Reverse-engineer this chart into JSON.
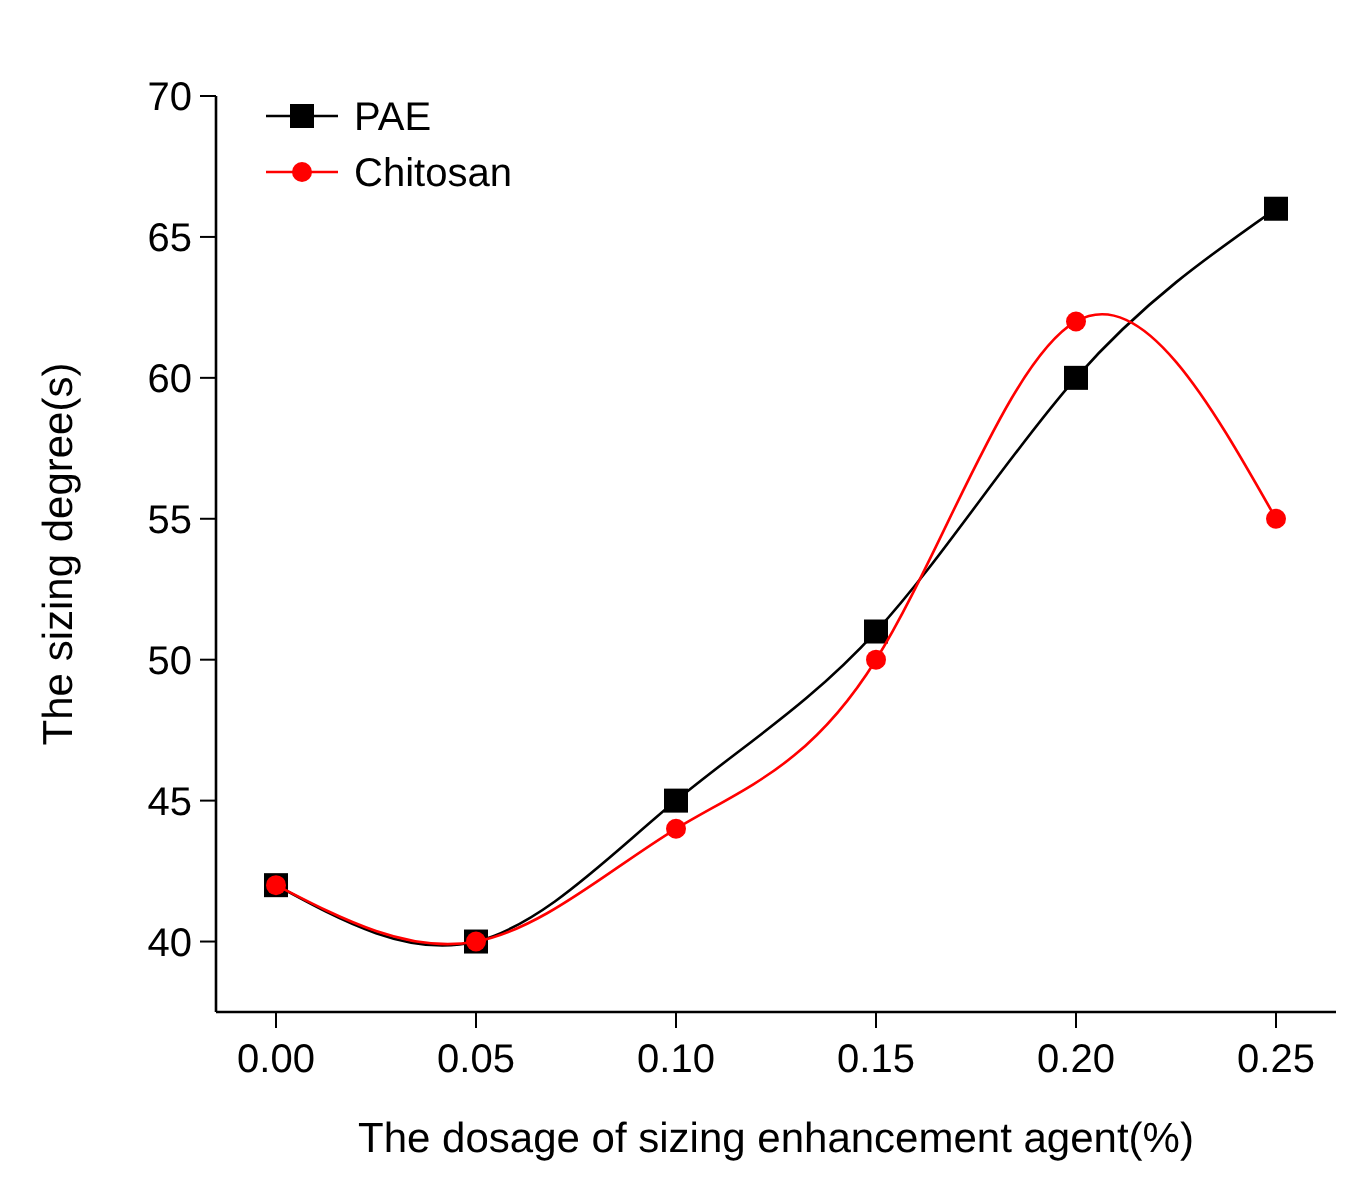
{
  "chart_data": {
    "type": "line",
    "xlabel": "The dosage of sizing enhancement agent(%)",
    "ylabel": "The sizing degree(s)",
    "xlim": [
      -0.015,
      0.265
    ],
    "xticks": [
      {
        "value": 0,
        "label": "0.00"
      },
      {
        "value": 0.05,
        "label": "0.05"
      },
      {
        "value": 0.1,
        "label": "0.10"
      },
      {
        "value": 0.15,
        "label": "0.15"
      },
      {
        "value": 0.2,
        "label": "0.20"
      },
      {
        "value": 0.25,
        "label": "0.25"
      }
    ],
    "ylim": [
      37.5,
      70
    ],
    "yticks": [
      40,
      45,
      50,
      55,
      60,
      65,
      70
    ],
    "x": [
      0,
      0.05,
      0.1,
      0.15,
      0.2,
      0.25
    ],
    "series": [
      {
        "name": "PAE",
        "color": "#000000",
        "marker": "square",
        "values": [
          42,
          40,
          45,
          51,
          60,
          66
        ]
      },
      {
        "name": "Chitosan",
        "color": "#ff0000",
        "marker": "circle",
        "values": [
          42,
          40,
          44,
          50,
          62,
          55
        ]
      }
    ],
    "grid": false,
    "legend": "top left",
    "line_style": "solid"
  }
}
